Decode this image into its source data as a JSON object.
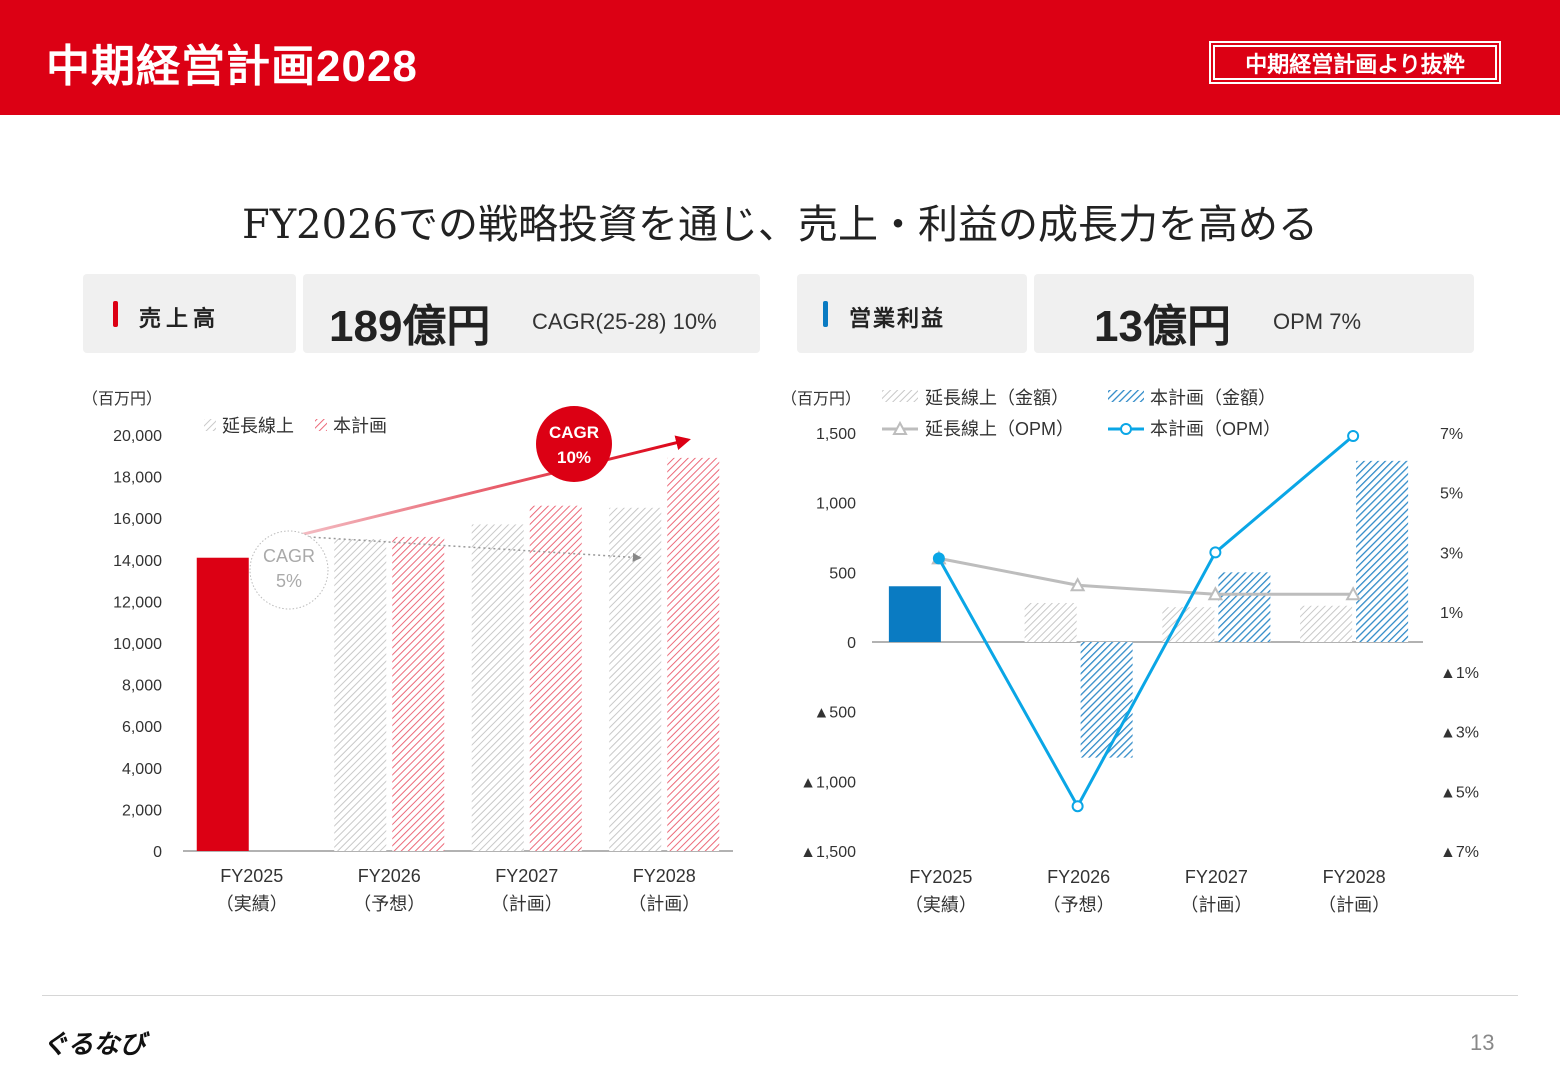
{
  "header": {
    "title": "中期経営計画2028",
    "badge": "中期経営計画より抜粋"
  },
  "headline": "FY2026での戦略投資を通じ、売上・利益の成長力を高める",
  "kpis": {
    "sales": {
      "label": "売上高",
      "value": "189億円",
      "sub": "CAGR(25-28) 10%"
    },
    "profit": {
      "label": "営業利益",
      "value": "13億円",
      "sub": "OPM 7%"
    }
  },
  "colors": {
    "brand_red": "#dc0014",
    "pink": "#ec6a7a",
    "grey_hatch": "#c8c8c8",
    "blue_actual": "#0a7bc2",
    "blue_plan": "#2f8ac8",
    "line_cyan": "#0aa6e6",
    "line_grey": "#bdbdbd"
  },
  "chart_data": [
    {
      "type": "bar",
      "unit_label": "（百万円）",
      "categories": [
        "FY2025",
        "FY2026",
        "FY2027",
        "FY2028"
      ],
      "category_sublabels": [
        "（実績）",
        "（予想）",
        "（計画）",
        "（計画）"
      ],
      "ylim": [
        0,
        20000
      ],
      "yticks": [
        0,
        2000,
        4000,
        6000,
        8000,
        10000,
        12000,
        14000,
        16000,
        18000,
        20000
      ],
      "ytick_labels": [
        "0",
        "2,000",
        "4,000",
        "6,000",
        "8,000",
        "10,000",
        "12,000",
        "14,000",
        "16,000",
        "18,000",
        "20,000"
      ],
      "legend": [
        "延長線上",
        "本計画"
      ],
      "legend_position": "top-left",
      "actual": {
        "category": "FY2025",
        "value": 14100
      },
      "series": [
        {
          "name": "延長線上",
          "values": [
            null,
            15000,
            15700,
            16500
          ]
        },
        {
          "name": "本計画",
          "values": [
            null,
            15100,
            16600,
            18900
          ]
        }
      ],
      "annotations": [
        {
          "text": [
            "CAGR",
            "10%"
          ],
          "style": "red-circle"
        },
        {
          "text": [
            "CAGR",
            "5%"
          ],
          "style": "grey-circle"
        }
      ]
    },
    {
      "type": "bar+line",
      "unit_label": "（百万円）",
      "categories": [
        "FY2025",
        "FY2026",
        "FY2027",
        "FY2028"
      ],
      "category_sublabels": [
        "（実績）",
        "（予想）",
        "（計画）",
        "（計画）"
      ],
      "ylim": [
        -1500,
        1500
      ],
      "yticks": [
        -1500,
        -1000,
        -500,
        0,
        500,
        1000,
        1500
      ],
      "ytick_labels": [
        "▲1,500",
        "▲1,000",
        "▲500",
        "0",
        "500",
        "1,000",
        "1,500"
      ],
      "y2lim": [
        -7,
        7
      ],
      "y2ticks": [
        -7,
        -5,
        -3,
        -1,
        1,
        3,
        5,
        7
      ],
      "y2tick_labels": [
        "▲7%",
        "▲5%",
        "▲3%",
        "▲1%",
        "1%",
        "3%",
        "5%",
        "7%"
      ],
      "legend": [
        "延長線上（金額）",
        "本計画（金額）",
        "延長線上（OPM）",
        "本計画（OPM）"
      ],
      "legend_position": "top",
      "actual": {
        "category": "FY2025",
        "value": 400
      },
      "bar_series": [
        {
          "name": "延長線上（金額）",
          "values": [
            null,
            280,
            250,
            260
          ]
        },
        {
          "name": "本計画（金額）",
          "values": [
            null,
            -830,
            500,
            1300
          ]
        }
      ],
      "line_series": [
        {
          "name": "延長線上（OPM）",
          "values": [
            2.8,
            1.9,
            1.6,
            1.6
          ]
        },
        {
          "name": "本計画（OPM）",
          "values": [
            2.8,
            -5.5,
            3.0,
            6.9
          ]
        }
      ]
    }
  ],
  "footer": {
    "logo": "ぐるなび",
    "page": "13"
  }
}
